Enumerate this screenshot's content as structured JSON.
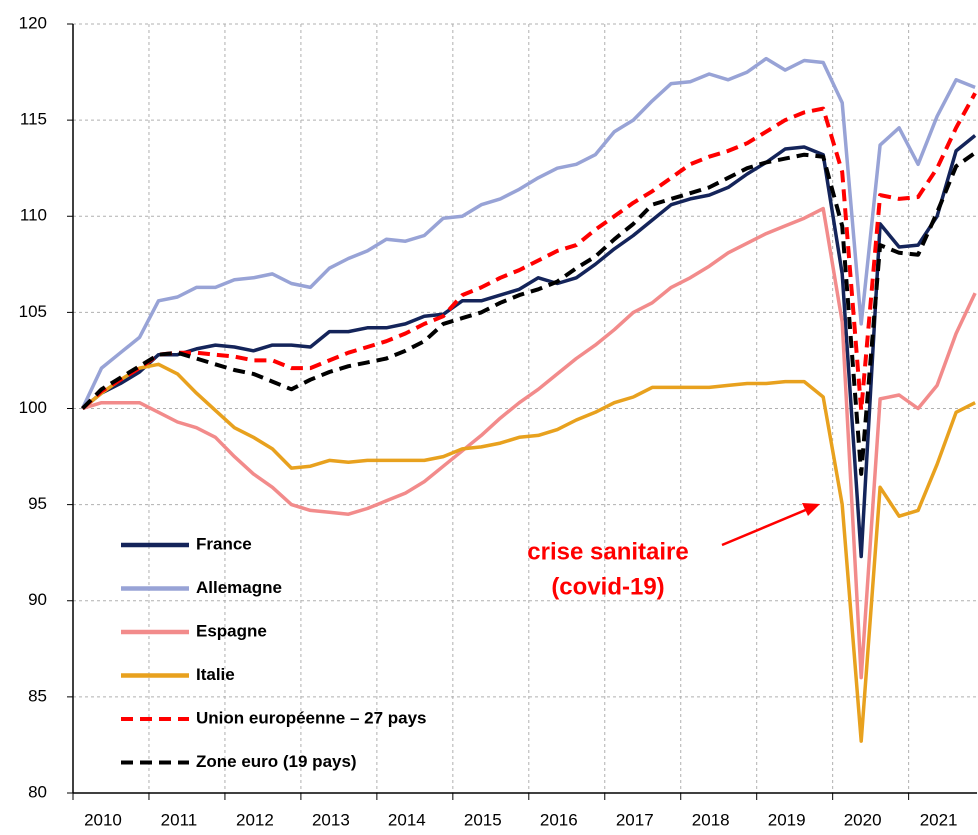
{
  "chart_data": {
    "type": "line",
    "annotation": [
      "crise sanitaire",
      "(covid-19)"
    ],
    "x": [
      2010.125,
      2010.375,
      2010.625,
      2010.875,
      2011.125,
      2011.375,
      2011.625,
      2011.875,
      2012.125,
      2012.375,
      2012.625,
      2012.875,
      2013.125,
      2013.375,
      2013.625,
      2013.875,
      2014.125,
      2014.375,
      2014.625,
      2014.875,
      2015.125,
      2015.375,
      2015.625,
      2015.875,
      2016.125,
      2016.375,
      2016.625,
      2016.875,
      2017.125,
      2017.375,
      2017.625,
      2017.875,
      2018.125,
      2018.375,
      2018.625,
      2018.875,
      2019.125,
      2019.375,
      2019.625,
      2019.875,
      2020.125,
      2020.375,
      2020.625,
      2020.875,
      2021.125,
      2021.375,
      2021.625,
      2021.875
    ],
    "xlim": [
      2010,
      2021.9
    ],
    "xticks": [
      2010,
      2011,
      2012,
      2013,
      2014,
      2015,
      2016,
      2017,
      2018,
      2019,
      2020,
      2021
    ],
    "ylim": [
      80,
      120
    ],
    "yticks": [
      80,
      85,
      90,
      95,
      100,
      105,
      110,
      115,
      120
    ],
    "grid": true,
    "series": [
      {
        "name": "France",
        "color": "#14245a",
        "style": "solid",
        "values": [
          100,
          100.8,
          101.3,
          101.9,
          102.8,
          102.8,
          103.1,
          103.3,
          103.2,
          103.0,
          103.3,
          103.3,
          103.2,
          104.0,
          104.0,
          104.2,
          104.2,
          104.4,
          104.8,
          104.9,
          105.6,
          105.6,
          105.9,
          106.2,
          106.8,
          106.5,
          106.8,
          107.5,
          108.3,
          109.0,
          109.8,
          110.6,
          110.9,
          111.1,
          111.5,
          112.2,
          112.8,
          113.5,
          113.6,
          113.2,
          107.0,
          92.3,
          109.6,
          108.4,
          108.5,
          110.0,
          113.4,
          114.2
        ]
      },
      {
        "name": "Allemagne",
        "color": "#98a3d6",
        "style": "solid",
        "values": [
          100,
          102.1,
          102.9,
          103.7,
          105.6,
          105.8,
          106.3,
          106.3,
          106.7,
          106.8,
          107.0,
          106.5,
          106.3,
          107.3,
          107.8,
          108.2,
          108.8,
          108.7,
          109.0,
          109.9,
          110.0,
          110.6,
          110.9,
          111.4,
          112.0,
          112.5,
          112.7,
          113.2,
          114.4,
          115.0,
          116.0,
          116.9,
          117.0,
          117.4,
          117.1,
          117.5,
          118.2,
          117.6,
          118.1,
          118.0,
          115.9,
          104.4,
          113.7,
          114.6,
          112.7,
          115.2,
          117.1,
          116.7
        ]
      },
      {
        "name": "Espagne",
        "color": "#f28b8b",
        "style": "solid",
        "values": [
          100,
          100.3,
          100.3,
          100.3,
          99.8,
          99.3,
          99.0,
          98.5,
          97.5,
          96.6,
          95.9,
          95.0,
          94.7,
          94.6,
          94.5,
          94.8,
          95.2,
          95.6,
          96.2,
          97.0,
          97.8,
          98.6,
          99.5,
          100.3,
          101.0,
          101.8,
          102.6,
          103.3,
          104.1,
          105.0,
          105.5,
          106.3,
          106.8,
          107.4,
          108.1,
          108.6,
          109.1,
          109.5,
          109.9,
          110.4,
          104.5,
          86.0,
          100.5,
          100.7,
          100.0,
          101.2,
          103.9,
          106.0
        ]
      },
      {
        "name": "Italie",
        "color": "#e8a11e",
        "style": "solid",
        "values": [
          100,
          100.8,
          101.5,
          102.1,
          102.3,
          101.8,
          100.8,
          99.9,
          99.0,
          98.5,
          97.9,
          96.9,
          97.0,
          97.3,
          97.2,
          97.3,
          97.3,
          97.3,
          97.3,
          97.5,
          97.9,
          98.0,
          98.2,
          98.5,
          98.6,
          98.9,
          99.4,
          99.8,
          100.3,
          100.6,
          101.1,
          101.1,
          101.1,
          101.1,
          101.2,
          101.3,
          101.3,
          101.4,
          101.4,
          100.6,
          95.0,
          82.7,
          95.9,
          94.4,
          94.7,
          97.1,
          99.8,
          100.3
        ]
      },
      {
        "name": "Union européenne – 27 pays",
        "color": "#ff0000",
        "style": "dashed",
        "values": [
          100,
          100.9,
          101.5,
          102.1,
          102.8,
          102.9,
          102.9,
          102.8,
          102.7,
          102.5,
          102.5,
          102.1,
          102.1,
          102.5,
          102.9,
          103.2,
          103.5,
          103.9,
          104.4,
          104.8,
          105.9,
          106.3,
          106.8,
          107.2,
          107.7,
          108.2,
          108.5,
          109.3,
          110.0,
          110.7,
          111.3,
          112.0,
          112.7,
          113.1,
          113.4,
          113.8,
          114.4,
          115.0,
          115.4,
          115.6,
          112.3,
          99.9,
          111.1,
          110.9,
          111.0,
          112.5,
          114.6,
          116.4
        ]
      },
      {
        "name": "Zone euro (19 pays)",
        "color": "#000000",
        "style": "dashed",
        "values": [
          100,
          101.0,
          101.6,
          102.2,
          102.8,
          102.9,
          102.6,
          102.3,
          102.0,
          101.8,
          101.4,
          101.0,
          101.5,
          101.9,
          102.2,
          102.4,
          102.6,
          103.0,
          103.5,
          104.4,
          104.7,
          105.0,
          105.5,
          105.9,
          106.2,
          106.6,
          107.3,
          107.9,
          108.8,
          109.6,
          110.6,
          110.9,
          111.2,
          111.5,
          112.0,
          112.5,
          112.8,
          113.0,
          113.2,
          113.1,
          109.5,
          96.6,
          108.5,
          108.1,
          108.0,
          110.2,
          112.6,
          113.3
        ]
      }
    ]
  }
}
